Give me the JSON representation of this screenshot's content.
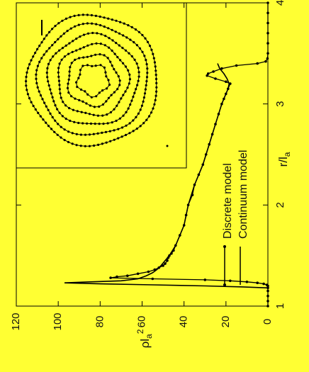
{
  "colors": {
    "background": "#ffff33",
    "ink": "#000000"
  },
  "chart_data": {
    "type": "line",
    "orientation": "rotated-90-clockwise",
    "x_axis": {
      "label_main": "r/l",
      "label_sub": "a",
      "range": [
        1,
        4
      ],
      "ticks": [
        "1",
        "2",
        "3",
        "4"
      ]
    },
    "y_axis": {
      "label_main": "ρl",
      "label_sub": "a",
      "label_sup": "2",
      "range": [
        0,
        120
      ],
      "ticks": [
        "0",
        "20",
        "40",
        "60",
        "80",
        "100",
        "120"
      ]
    },
    "legend": {
      "placement": "bottom-center",
      "entries": [
        {
          "label": "Discrete model",
          "style": "line-with-dots"
        },
        {
          "label": "Continuum model",
          "style": "line"
        }
      ]
    },
    "series": [
      {
        "name": "Discrete model",
        "x": [
          1.0,
          1.05,
          1.1,
          1.15,
          1.18,
          1.2,
          1.21,
          1.22,
          1.23,
          1.24,
          1.25,
          1.26,
          1.27,
          1.28,
          1.29,
          1.3,
          1.32,
          1.34,
          1.36,
          1.38,
          1.4,
          1.42,
          1.45,
          1.48,
          1.5,
          1.52,
          1.55,
          1.6,
          1.7,
          1.8,
          1.9,
          2.0,
          2.1,
          2.2,
          2.3,
          2.4,
          2.5,
          2.6,
          2.7,
          2.8,
          2.9,
          3.0,
          3.05,
          3.1,
          3.15,
          3.2,
          3.22,
          3.25,
          3.28,
          3.3,
          3.32,
          3.35,
          3.38,
          3.4,
          3.42,
          3.45,
          3.5,
          3.6,
          3.7,
          3.8,
          3.9,
          4.0
        ],
        "y": [
          0,
          0,
          0,
          0,
          0,
          0,
          0.5,
          2,
          5,
          10,
          18,
          30,
          55,
          75,
          72,
          67,
          62,
          57,
          54,
          52,
          50,
          49,
          48,
          47.5,
          47,
          46,
          45,
          44,
          42,
          40,
          39,
          38,
          36,
          35,
          33,
          31,
          29.5,
          28,
          26.5,
          25,
          23.5,
          22,
          21,
          20,
          19,
          18,
          20,
          25,
          29,
          28.5,
          26,
          22,
          15,
          5,
          1,
          0.2,
          0,
          0,
          0,
          0,
          0,
          0
        ]
      },
      {
        "name": "Continuum model",
        "x": [
          1.18,
          1.19,
          1.2,
          1.21,
          1.22,
          1.23,
          1.24,
          1.25,
          1.27,
          1.3,
          1.33,
          1.36,
          1.4,
          1.45,
          1.5,
          1.6,
          1.8,
          2.0,
          2.2,
          2.4,
          2.6,
          2.8,
          3.0,
          3.1,
          3.15,
          3.2,
          3.25,
          3.3,
          3.35,
          3.4
        ],
        "y": [
          0,
          12,
          30,
          55,
          80,
          97,
          85,
          70,
          62,
          58,
          55,
          53,
          51,
          49,
          47,
          44,
          40,
          38,
          35,
          31,
          28,
          25,
          22,
          20,
          19,
          18.5,
          19.5,
          21,
          23,
          24
        ]
      }
    ],
    "inset": {
      "description_free": true,
      "rings": 6
    }
  }
}
